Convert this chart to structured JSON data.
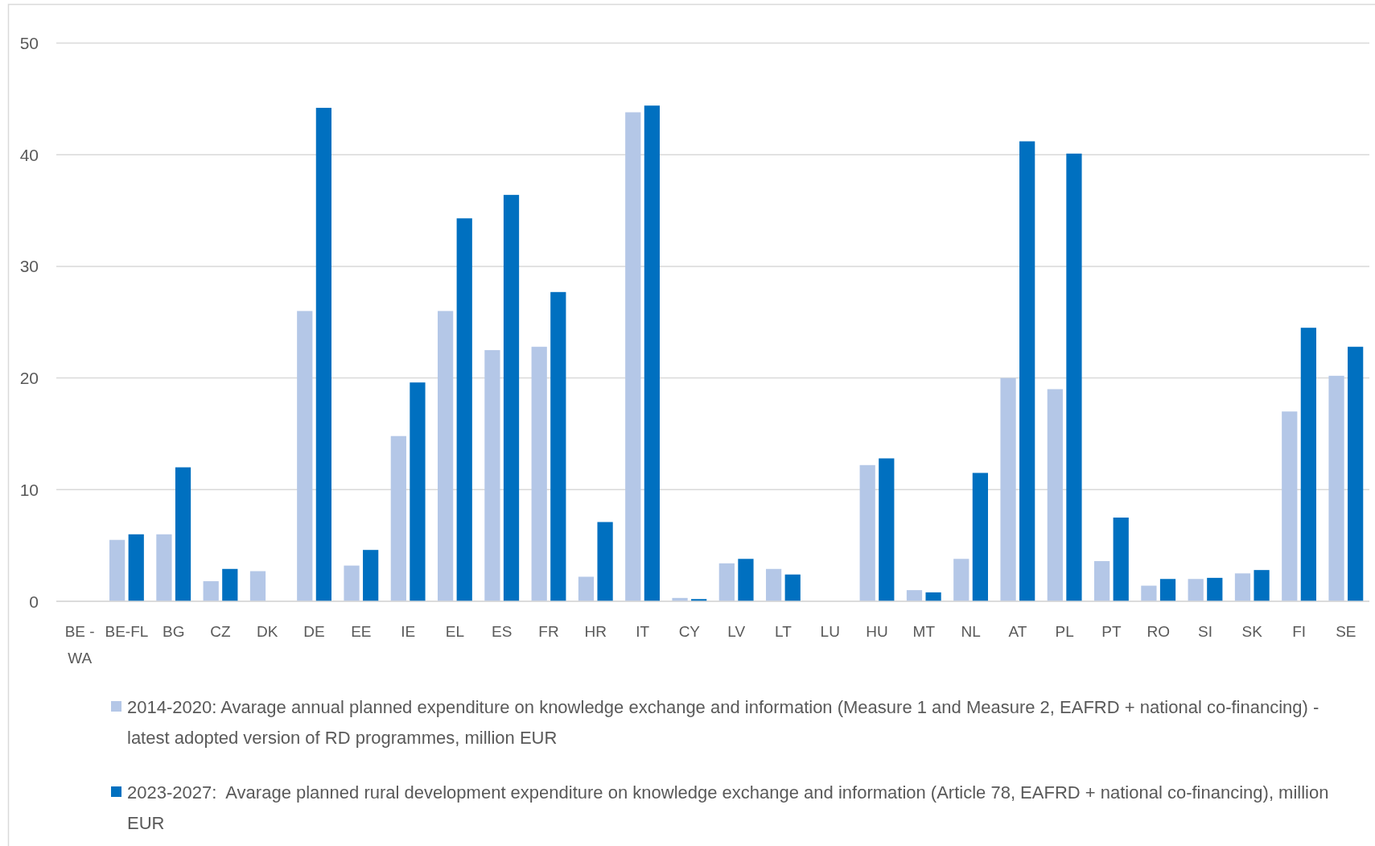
{
  "chart_data": {
    "type": "bar",
    "categories": [
      "BE - WA",
      "BE-FL",
      "BG",
      "CZ",
      "DK",
      "DE",
      "EE",
      "IE",
      "EL",
      "ES",
      "FR",
      "HR",
      "IT",
      "CY",
      "LV",
      "LT",
      "LU",
      "HU",
      "MT",
      "NL",
      "AT",
      "PL",
      "PT",
      "RO",
      "SI",
      "SK",
      "FI",
      "SE"
    ],
    "series": [
      {
        "name": "2014-2020: Avarage annual planned expenditure on knowledge exchange and information (Measure 1 and Measure 2, EAFRD + national co-financing) - latest adopted version of RD programmes, million EUR",
        "color": "#b4c7e7",
        "values": [
          null,
          5.5,
          6.0,
          1.8,
          2.7,
          26.0,
          3.2,
          14.8,
          26.0,
          22.5,
          22.8,
          2.2,
          43.8,
          0.3,
          3.4,
          2.9,
          null,
          12.2,
          1.0,
          3.8,
          20.0,
          19.0,
          3.6,
          1.4,
          2.0,
          2.5,
          17.0,
          20.2
        ]
      },
      {
        "name": "2023-2027:  Avarage planned rural development expenditure on knowledge exchange and information (Article 78, EAFRD + national co-financing), million EUR",
        "color": "#0070c0",
        "values": [
          null,
          6.0,
          12.0,
          2.9,
          null,
          44.2,
          4.6,
          19.6,
          34.3,
          36.4,
          27.7,
          7.1,
          44.4,
          0.2,
          3.8,
          2.4,
          null,
          12.8,
          0.8,
          11.5,
          41.2,
          40.1,
          7.5,
          2.0,
          2.1,
          2.8,
          24.5,
          22.8
        ]
      }
    ],
    "ylim": [
      0,
      50
    ],
    "yticks": [
      0,
      10,
      20,
      30,
      40,
      50
    ],
    "grid": "y",
    "legend": "bottom"
  }
}
